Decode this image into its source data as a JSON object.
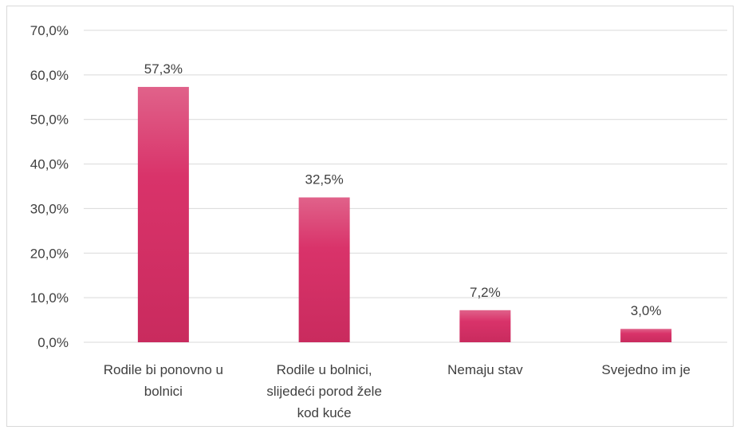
{
  "chart_data": {
    "type": "bar",
    "categories": [
      [
        "Rodile bi ponovno u",
        "bolnici"
      ],
      [
        "Rodile u bolnici,",
        "slijedeći porod žele",
        "kod kuće"
      ],
      [
        "Nemaju stav"
      ],
      [
        "Svejedno im je"
      ]
    ],
    "values": [
      57.3,
      32.5,
      7.2,
      3.0
    ],
    "data_labels": [
      "57,3%",
      "32,5%",
      "7,2%",
      "3,0%"
    ],
    "y_ticks": [
      0,
      10,
      20,
      30,
      40,
      50,
      60,
      70
    ],
    "y_tick_labels": [
      "0,0%",
      "10,0%",
      "20,0%",
      "30,0%",
      "40,0%",
      "50,0%",
      "60,0%",
      "70,0%"
    ],
    "ylim": [
      0,
      70
    ],
    "grid": true,
    "legend": "none",
    "bar_color": "#d9336a",
    "bar_color_top": "#e0628a",
    "gridline_color": "#d9d9d9"
  }
}
